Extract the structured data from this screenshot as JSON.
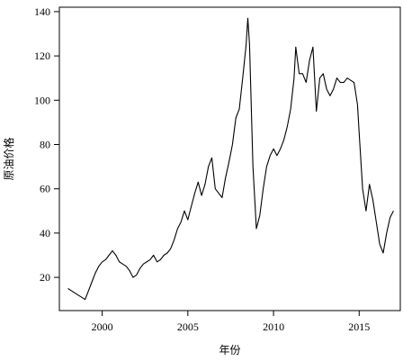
{
  "chart_data": {
    "type": "line",
    "title": "",
    "xlabel": "年份",
    "ylabel": "原油价格",
    "xlim": [
      1997.5,
      2017.4
    ],
    "ylim": [
      5,
      142
    ],
    "xticks": [
      2000,
      2005,
      2010,
      2015
    ],
    "yticks": [
      20,
      40,
      60,
      80,
      100,
      120,
      140
    ],
    "grid": false,
    "legend": "none",
    "series": [
      {
        "x": [
          1998.0,
          1998.2,
          1998.4,
          1998.6,
          1998.8,
          1999.0,
          1999.2,
          1999.4,
          1999.6,
          1999.8,
          2000.0,
          2000.2,
          2000.4,
          2000.6,
          2000.8,
          2001.0,
          2001.2,
          2001.4,
          2001.6,
          2001.8,
          2002.0,
          2002.2,
          2002.4,
          2002.6,
          2002.8,
          2003.0,
          2003.2,
          2003.4,
          2003.6,
          2003.8,
          2004.0,
          2004.2,
          2004.4,
          2004.6,
          2004.8,
          2005.0,
          2005.2,
          2005.4,
          2005.6,
          2005.8,
          2006.0,
          2006.2,
          2006.4,
          2006.6,
          2006.8,
          2007.0,
          2007.2,
          2007.4,
          2007.6,
          2007.8,
          2008.0,
          2008.2,
          2008.4,
          2008.5,
          2008.6,
          2008.8,
          2009.0,
          2009.2,
          2009.4,
          2009.6,
          2009.8,
          2010.0,
          2010.2,
          2010.4,
          2010.6,
          2010.8,
          2011.0,
          2011.2,
          2011.3,
          2011.5,
          2011.7,
          2011.9,
          2012.1,
          2012.3,
          2012.5,
          2012.7,
          2012.9,
          2013.1,
          2013.3,
          2013.5,
          2013.7,
          2013.9,
          2014.1,
          2014.3,
          2014.5,
          2014.7,
          2014.9,
          2015.0,
          2015.2,
          2015.4,
          2015.6,
          2015.8,
          2016.0,
          2016.2,
          2016.4,
          2016.6,
          2016.8,
          2017.0
        ],
        "y": [
          15,
          14,
          13,
          12,
          11,
          10,
          14,
          18,
          22,
          25,
          27,
          28,
          30,
          32,
          30,
          27,
          26,
          25,
          23,
          20,
          21,
          24,
          26,
          27,
          28,
          30,
          27,
          28,
          30,
          31,
          33,
          37,
          42,
          45,
          50,
          46,
          52,
          58,
          63,
          57,
          62,
          70,
          74,
          60,
          58,
          56,
          65,
          72,
          80,
          92,
          96,
          110,
          125,
          137,
          125,
          70,
          42,
          48,
          60,
          70,
          75,
          78,
          75,
          78,
          82,
          88,
          96,
          110,
          124,
          112,
          112,
          108,
          118,
          124,
          95,
          110,
          112,
          105,
          102,
          105,
          110,
          108,
          108,
          110,
          109,
          108,
          98,
          85,
          60,
          50,
          62,
          55,
          45,
          35,
          31,
          40,
          47,
          50
        ]
      }
    ]
  }
}
